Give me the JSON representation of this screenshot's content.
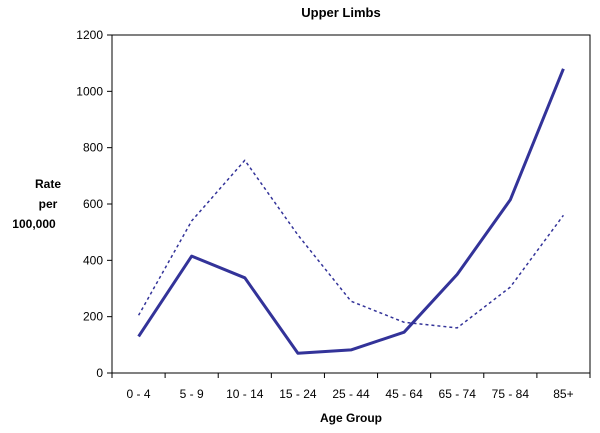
{
  "chart_data": {
    "type": "line",
    "title": "Upper Limbs",
    "xlabel": "Age Group",
    "ylabel": [
      "Rate",
      "per",
      "100,000"
    ],
    "categories": [
      "0 - 4",
      "5 - 9",
      "10 - 14",
      "15 - 24",
      "25 - 44",
      "45 - 64",
      "65 - 74",
      "75 - 84",
      "85+"
    ],
    "yticks": [
      "0",
      "200",
      "400",
      "600",
      "800",
      "1000",
      "1200"
    ],
    "ylim": [
      0,
      1200
    ],
    "grid": false,
    "legend": "none",
    "series": [
      {
        "style": "solid",
        "color": "#333399",
        "values": [
          130,
          415,
          338,
          70,
          82,
          145,
          350,
          615,
          1080
        ]
      },
      {
        "style": "dotted",
        "color": "#333399",
        "values": [
          205,
          540,
          755,
          490,
          255,
          180,
          160,
          305,
          560
        ]
      }
    ]
  }
}
